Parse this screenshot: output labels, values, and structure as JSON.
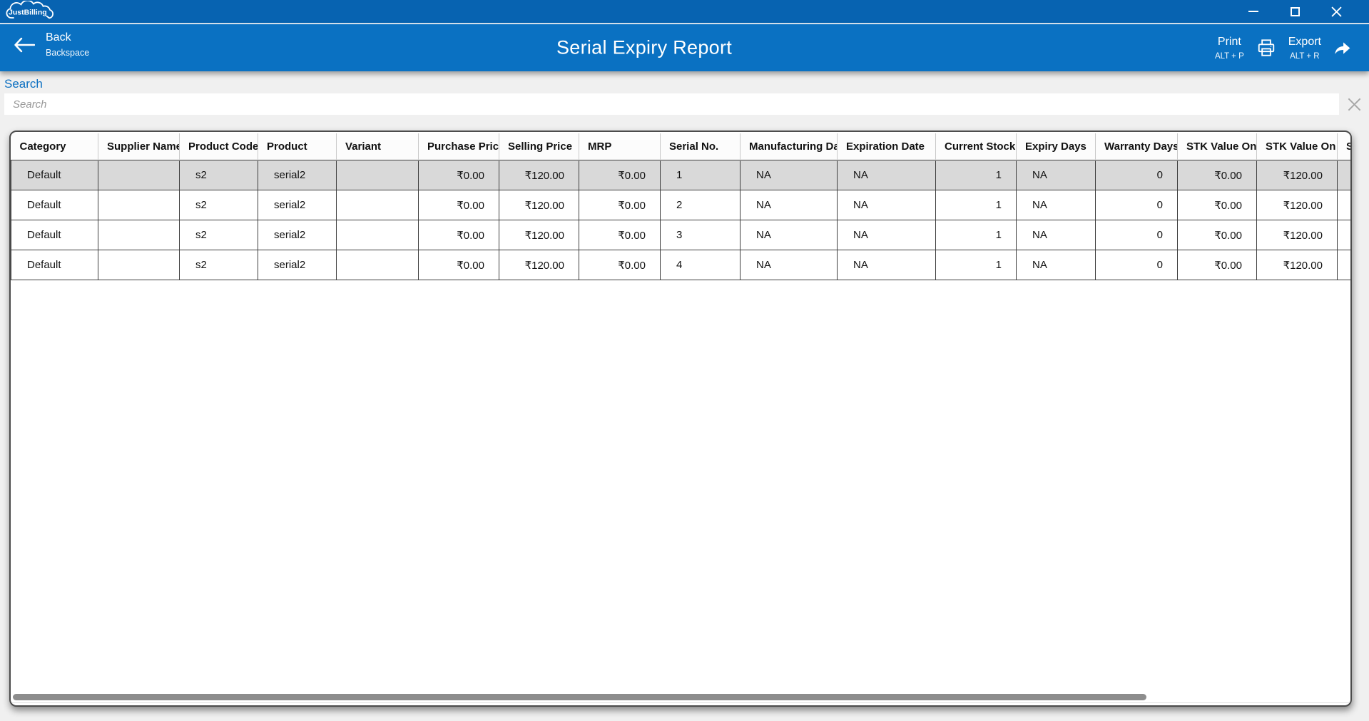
{
  "titlebar": {
    "logo_text": "JustBilling"
  },
  "command_bar": {
    "back": {
      "label": "Back",
      "shortcut": "Backspace"
    },
    "title": "Serial Expiry Report",
    "print": {
      "label": "Print",
      "shortcut": "ALT + P"
    },
    "export": {
      "label": "Export",
      "shortcut": "ALT + R"
    }
  },
  "search": {
    "label": "Search",
    "placeholder": "Search"
  },
  "table": {
    "columns": [
      "Category",
      "Supplier Name",
      "Product Code",
      "Product",
      "Variant",
      "Purchase Price",
      "Selling Price",
      "MRP",
      "Serial No.",
      "Manufacturing Date",
      "Expiration Date",
      "Current Stock",
      "Expiry Days",
      "Warranty Days",
      "STK Value On P",
      "STK Value On S",
      "ST"
    ],
    "rows": [
      [
        "Default",
        "",
        "s2",
        "serial2",
        "",
        "₹0.00",
        "₹120.00",
        "₹0.00",
        "1",
        "NA",
        "NA",
        "1",
        "NA",
        "0",
        "₹0.00",
        "₹120.00",
        ""
      ],
      [
        "Default",
        "",
        "s2",
        "serial2",
        "",
        "₹0.00",
        "₹120.00",
        "₹0.00",
        "2",
        "NA",
        "NA",
        "1",
        "NA",
        "0",
        "₹0.00",
        "₹120.00",
        ""
      ],
      [
        "Default",
        "",
        "s2",
        "serial2",
        "",
        "₹0.00",
        "₹120.00",
        "₹0.00",
        "3",
        "NA",
        "NA",
        "1",
        "NA",
        "0",
        "₹0.00",
        "₹120.00",
        ""
      ],
      [
        "Default",
        "",
        "s2",
        "serial2",
        "",
        "₹0.00",
        "₹120.00",
        "₹0.00",
        "4",
        "NA",
        "NA",
        "1",
        "NA",
        "0",
        "₹0.00",
        "₹120.00",
        ""
      ]
    ],
    "selected_row_index": 0
  },
  "colors": {
    "titlebar_blue": "#0763b1",
    "command_bar_blue": "#0a71c2",
    "link_blue": "#0b6fc1",
    "selected_row_gray": "#d9d9d9",
    "cell_border": "#3f3f3f",
    "scrollbar_gray": "#8d8d8d",
    "background_gray": "#f0f0f0"
  }
}
